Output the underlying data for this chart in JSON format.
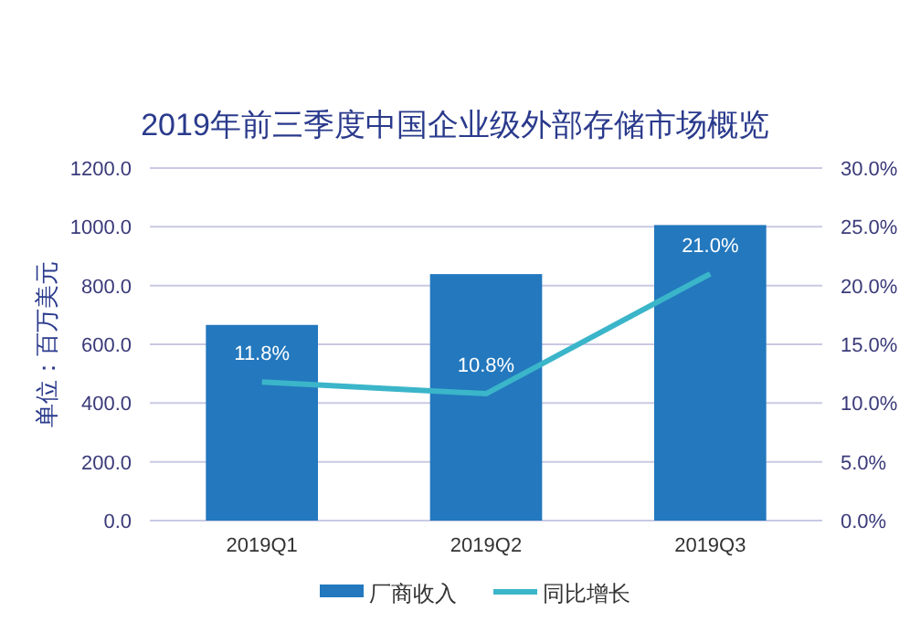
{
  "chart_data": {
    "type": "bar",
    "title": "2019年前三季度中国企业级外部存储市场概览",
    "ylabel": "单位：百万美元",
    "categories": [
      "2019Q1",
      "2019Q2",
      "2019Q3"
    ],
    "series": [
      {
        "name": "厂商收入",
        "color": "#2378be",
        "values": [
          666,
          839,
          1006
        ]
      },
      {
        "name": "同比增长",
        "type": "line",
        "axis": "y2",
        "color": "#3bb5c9",
        "values": [
          11.8,
          10.8,
          21.0
        ],
        "value_labels": [
          "11.8%",
          "10.8%",
          "21.0%"
        ]
      }
    ],
    "ylim": [
      0,
      1200
    ],
    "yticks": [
      {
        "value": 0,
        "label": "0.0"
      },
      {
        "value": 200,
        "label": "200.0"
      },
      {
        "value": 400,
        "label": "400.0"
      },
      {
        "value": 600,
        "label": "600.0"
      },
      {
        "value": 800,
        "label": "800.0"
      },
      {
        "value": 1000,
        "label": "1000.0"
      },
      {
        "value": 1200,
        "label": "1200.0"
      }
    ],
    "y2lim": [
      0,
      30
    ],
    "y2ticks": [
      {
        "value": 0,
        "label": "0.0%"
      },
      {
        "value": 5,
        "label": "5.0%"
      },
      {
        "value": 10,
        "label": "10.0%"
      },
      {
        "value": 15,
        "label": "15.0%"
      },
      {
        "value": 20,
        "label": "20.0%"
      },
      {
        "value": 25,
        "label": "25.0%"
      },
      {
        "value": 30,
        "label": "30.0%"
      }
    ],
    "grid": "y",
    "legend": "bottom"
  }
}
